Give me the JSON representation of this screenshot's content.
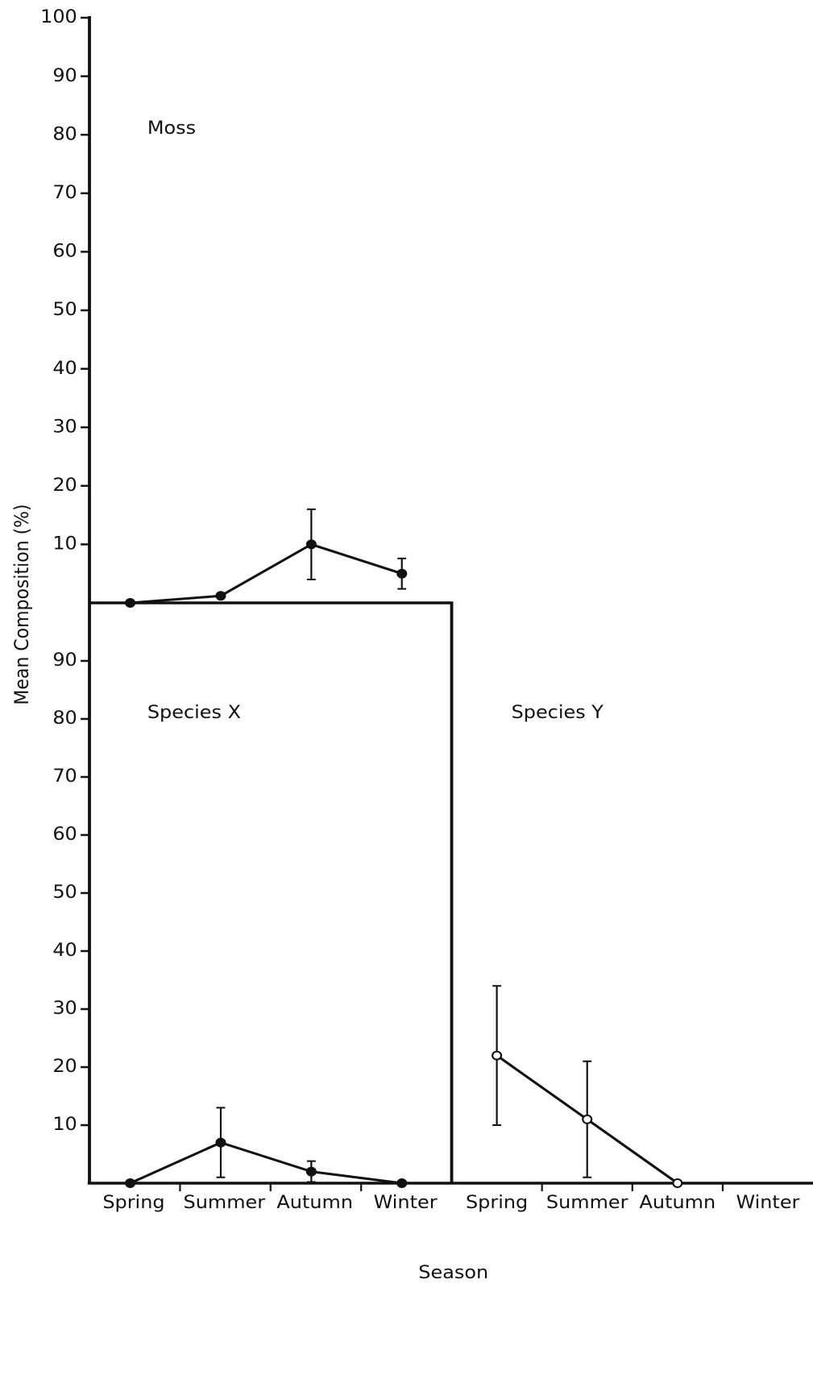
{
  "chart_data": [
    {
      "type": "line",
      "title": "Moss",
      "y_label": "Mean Composition (%)",
      "values": [
        0,
        1.2,
        10,
        5
      ],
      "errors": [
        null,
        null,
        6,
        2.6
      ],
      "ylim": [
        0,
        100
      ],
      "yticks": [
        10,
        20,
        30,
        40,
        50,
        60,
        70,
        80,
        90,
        100
      ],
      "color": "#111111"
    },
    {
      "type": "line",
      "title": "Species X",
      "x_label": "Season",
      "categories": [
        "Spring",
        "Summer",
        "Autumn",
        "Winter"
      ],
      "values": [
        0,
        7,
        2,
        0
      ],
      "errors": [
        null,
        6,
        1.8,
        null
      ],
      "ylim": [
        0,
        100
      ],
      "yticks": [
        10,
        20,
        30,
        40,
        50,
        60,
        70,
        80,
        90
      ],
      "color": "#111111"
    },
    {
      "type": "line",
      "title": "Species Y",
      "categories": [
        "Spring",
        "Summer",
        "Autumn",
        "Winter"
      ],
      "values": [
        22,
        11,
        0,
        null
      ],
      "errors": [
        12,
        10,
        null,
        null
      ],
      "ylim": [
        0,
        100
      ],
      "color": "#111111"
    }
  ]
}
